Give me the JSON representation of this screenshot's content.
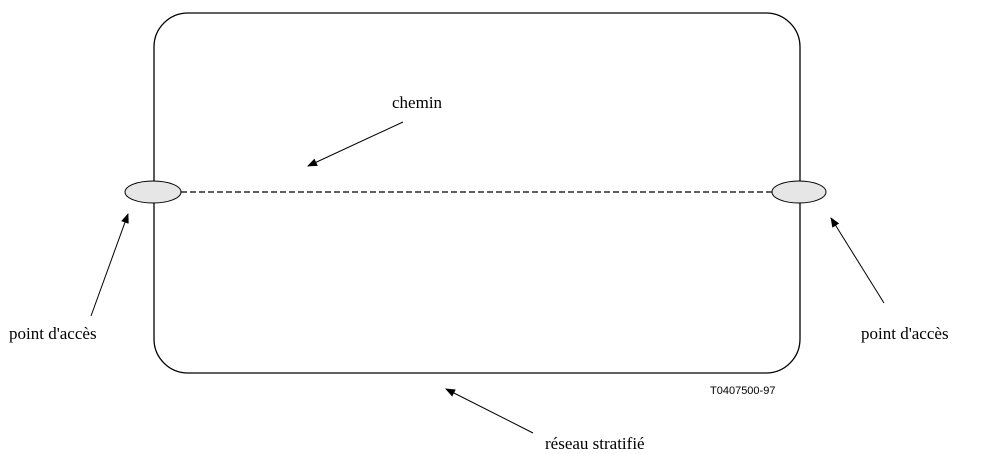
{
  "diagram": {
    "labels": {
      "path": "chemin",
      "access_point_left": "point d'accès",
      "access_point_right": "point d'accès",
      "network": "réseau stratifié",
      "figure_code": "T0407500-97"
    },
    "colors": {
      "stroke": "#000000",
      "access_point_fill": "#e6e6e6",
      "background": "#ffffff"
    }
  }
}
